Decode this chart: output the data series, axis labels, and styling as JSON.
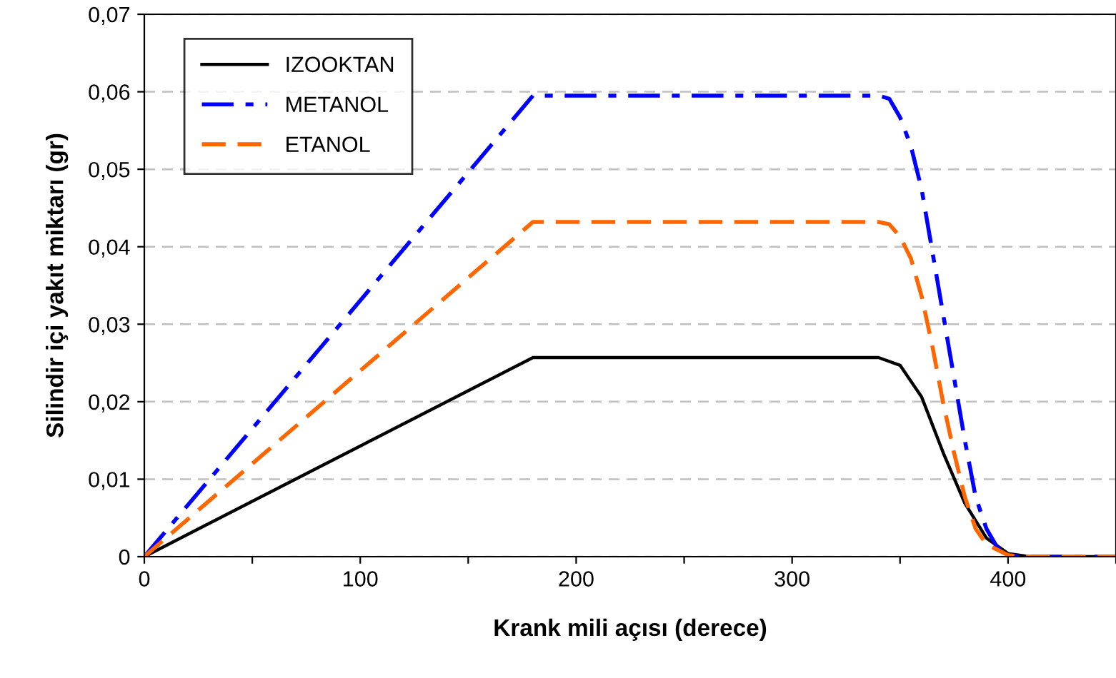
{
  "chart_data": {
    "type": "line",
    "xlabel": "Krank mili açısı (derece)",
    "ylabel": "Silindir içi yakıt miktarı (gr)",
    "xlim": [
      0,
      450
    ],
    "ylim": [
      0,
      0.07
    ],
    "xticks": [
      0,
      {
        "value": 50,
        "label": null
      },
      100,
      {
        "value": 150,
        "label": null
      },
      200,
      {
        "value": 250,
        "label": null
      },
      300,
      {
        "value": 350,
        "label": null
      },
      400,
      {
        "value": 450,
        "label": null
      }
    ],
    "yticks": [
      0,
      {
        "value": 0.01,
        "label": "0,01"
      },
      {
        "value": 0.02,
        "label": "0,02"
      },
      {
        "value": 0.03,
        "label": "0,03"
      },
      {
        "value": 0.04,
        "label": "0,04"
      },
      {
        "value": 0.05,
        "label": "0,05"
      },
      {
        "value": 0.06,
        "label": "0,06"
      },
      {
        "value": 0.07,
        "label": "0,07"
      }
    ],
    "grid": "y",
    "legend": "top left",
    "marker": "none",
    "series": [
      {
        "name": "IZOOKTAN",
        "color": "#000000",
        "line_style": "solid",
        "x": [
          0,
          180,
          340,
          350,
          360,
          370,
          380,
          390,
          400,
          410,
          450
        ],
        "values": [
          0,
          0.0257,
          0.0257,
          0.0247,
          0.0206,
          0.0134,
          0.0069,
          0.0024,
          0.0004,
          0,
          0
        ]
      },
      {
        "name": "METANOL",
        "color": "#0000ff",
        "line_style": "dashdot",
        "x": [
          0,
          180,
          340,
          345,
          350,
          355,
          360,
          365,
          370,
          375,
          380,
          385,
          390,
          395,
          400,
          405,
          450
        ],
        "values": [
          0,
          0.0595,
          0.0595,
          0.0591,
          0.0567,
          0.053,
          0.0474,
          0.0393,
          0.0312,
          0.0231,
          0.015,
          0.0077,
          0.0036,
          0.0012,
          0.0003,
          0,
          0
        ]
      },
      {
        "name": "ETANOL",
        "color": "#ff6600",
        "line_style": "dashed",
        "x": [
          0,
          180,
          340,
          345,
          350,
          355,
          360,
          365,
          370,
          375,
          380,
          385,
          390,
          400,
          405,
          450
        ],
        "values": [
          0,
          0.0432,
          0.0432,
          0.0429,
          0.0413,
          0.0385,
          0.0336,
          0.0271,
          0.0198,
          0.0134,
          0.0077,
          0.0036,
          0.0016,
          0.0002,
          0,
          0
        ]
      }
    ]
  }
}
